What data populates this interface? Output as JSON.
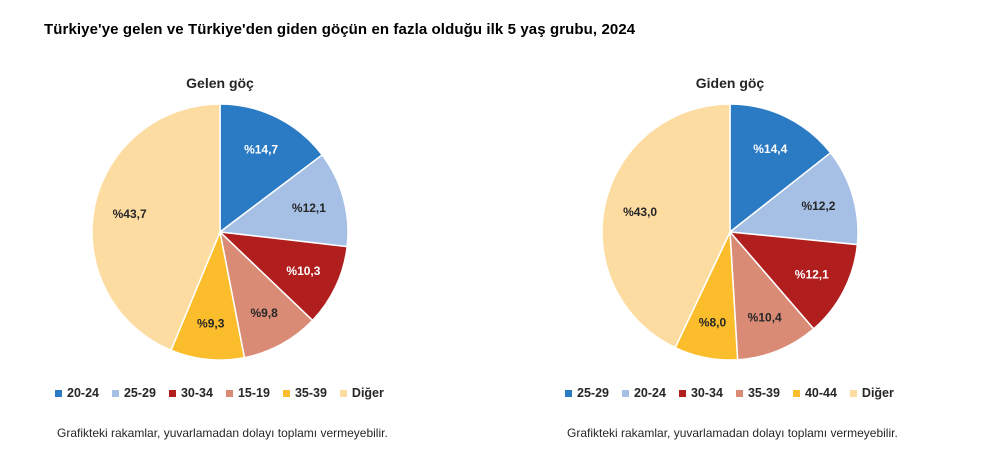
{
  "title": "Türkiye'ye gelen ve Türkiye'den giden göçün en fazla olduğu ilk 5 yaş grubu, 2024",
  "chart_data": [
    {
      "type": "pie",
      "title": "Gelen göç",
      "categories": [
        "20-24",
        "25-29",
        "30-34",
        "15-19",
        "35-39",
        "Diğer"
      ],
      "values": [
        14.7,
        12.1,
        10.3,
        9.8,
        9.3,
        43.7
      ],
      "labels": [
        "%14,7",
        "%12,1",
        "%10,3",
        "%9,8",
        "%9,3",
        "%43,7"
      ],
      "colors": [
        "#2a7bc4",
        "#a5bfe5",
        "#b01e1e",
        "#d98b76",
        "#fbbd2b",
        "#fddca2"
      ],
      "label_colors": [
        "#ffffff",
        "#262626",
        "#ffffff",
        "#262626",
        "#262626",
        "#262626"
      ],
      "legend_placement": "bottom",
      "note": "Grafikteki rakamlar, yuvarlamadan dolayı toplamı vermeyebilir."
    },
    {
      "type": "pie",
      "title": "Giden göç",
      "categories": [
        "25-29",
        "20-24",
        "30-34",
        "35-39",
        "40-44",
        "Diğer"
      ],
      "values": [
        14.4,
        12.2,
        12.1,
        10.4,
        8.0,
        43.0
      ],
      "labels": [
        "%14,4",
        "%12,2",
        "%12,1",
        "%10,4",
        "%8,0",
        "%43,0"
      ],
      "colors": [
        "#2a7bc4",
        "#a5bfe5",
        "#b01e1e",
        "#d98b76",
        "#fbbd2b",
        "#fddca2"
      ],
      "label_colors": [
        "#ffffff",
        "#262626",
        "#ffffff",
        "#262626",
        "#262626",
        "#262626"
      ],
      "legend_placement": "bottom",
      "note": "Grafikteki rakamlar, yuvarlamadan dolayı toplamı vermeyebilir."
    }
  ]
}
